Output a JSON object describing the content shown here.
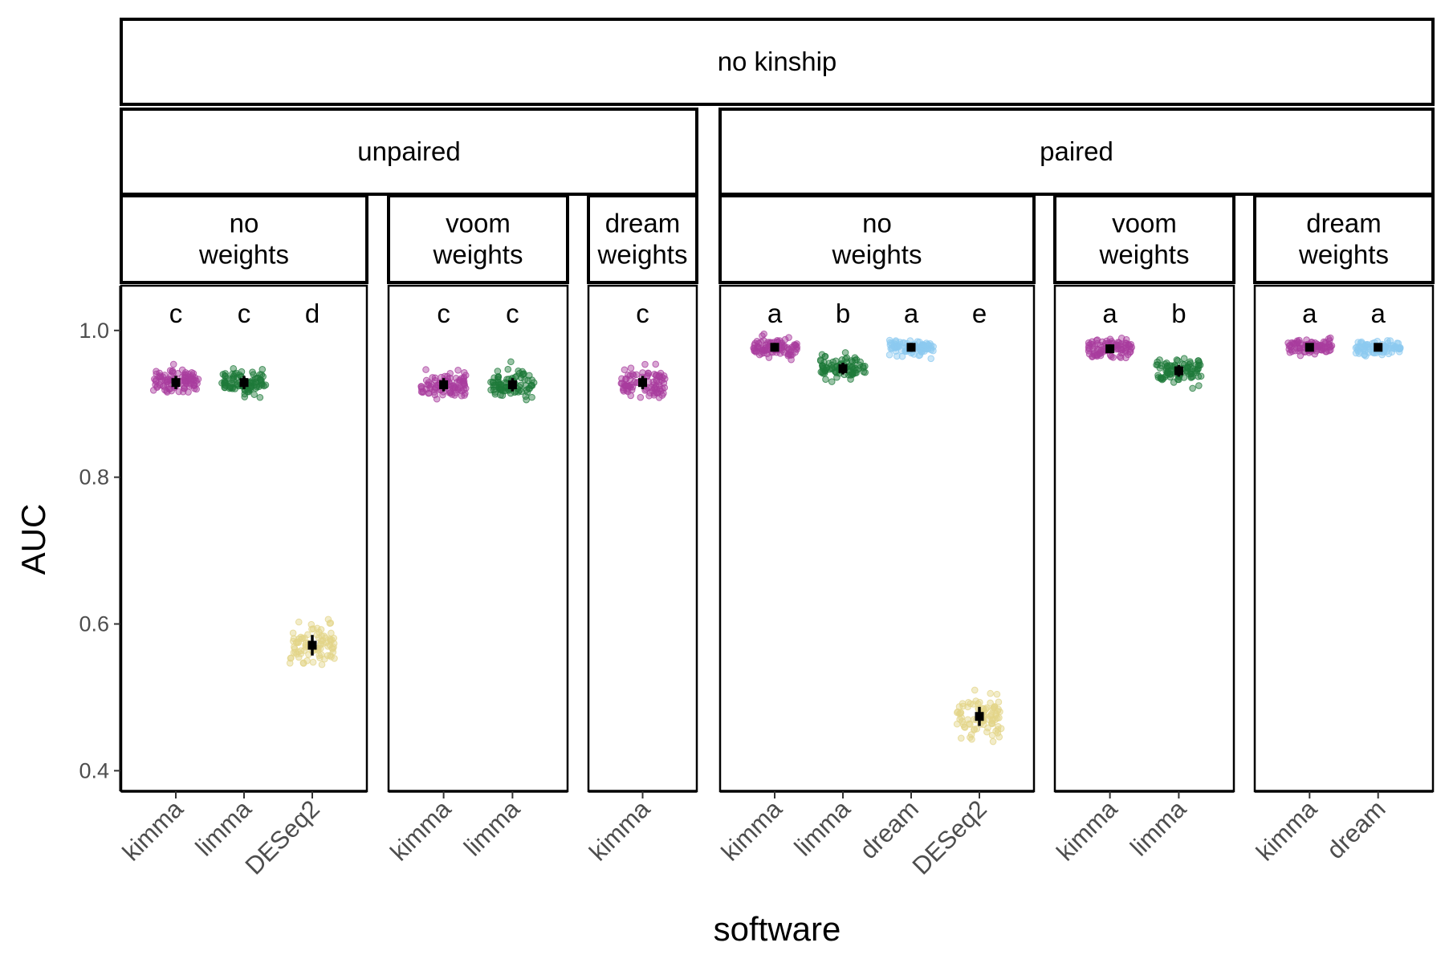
{
  "chart_data": {
    "type": "scatter",
    "xlabel": "software",
    "ylabel": "AUC",
    "ylim": [
      0.372,
      1.061
    ],
    "yticks": [
      0.4,
      0.6,
      0.8,
      1.0
    ],
    "ytick_labels": [
      "0.4",
      "0.6",
      "0.8",
      "1.0"
    ],
    "grid": false,
    "legend": "none",
    "colors": {
      "kimma": "#a83c9e",
      "limma": "#1e7a3a",
      "dream": "#8ccaf0",
      "DESeq2": "#e3d488",
      "summary": "#000000"
    },
    "facet_top": "no kinship",
    "groups": [
      {
        "label": "unpaired",
        "panels": [
          {
            "label": "no\nweights",
            "points": [
              {
                "software": "kimma",
                "mean": 0.929,
                "sd": 0.009,
                "letter": "c"
              },
              {
                "software": "limma",
                "mean": 0.929,
                "sd": 0.009,
                "letter": "c"
              },
              {
                "software": "DESeq2",
                "mean": 0.571,
                "sd": 0.014,
                "letter": "d"
              }
            ]
          },
          {
            "label": "voom\nweights",
            "points": [
              {
                "software": "kimma",
                "mean": 0.926,
                "sd": 0.009,
                "letter": "c"
              },
              {
                "software": "limma",
                "mean": 0.926,
                "sd": 0.009,
                "letter": "c"
              }
            ]
          },
          {
            "label": "dream\nweights",
            "points": [
              {
                "software": "kimma",
                "mean": 0.929,
                "sd": 0.009,
                "letter": "c"
              }
            ]
          }
        ]
      },
      {
        "label": "paired",
        "panels": [
          {
            "label": "no\nweights",
            "points": [
              {
                "software": "kimma",
                "mean": 0.977,
                "sd": 0.006,
                "letter": "a"
              },
              {
                "software": "limma",
                "mean": 0.948,
                "sd": 0.008,
                "letter": "b"
              },
              {
                "software": "dream",
                "mean": 0.977,
                "sd": 0.006,
                "letter": "a"
              },
              {
                "software": "DESeq2",
                "mean": 0.474,
                "sd": 0.013,
                "letter": "e"
              }
            ]
          },
          {
            "label": "voom\nweights",
            "points": [
              {
                "software": "kimma",
                "mean": 0.975,
                "sd": 0.006,
                "letter": "a"
              },
              {
                "software": "limma",
                "mean": 0.945,
                "sd": 0.008,
                "letter": "b"
              }
            ]
          },
          {
            "label": "dream\nweights",
            "points": [
              {
                "software": "kimma",
                "mean": 0.977,
                "sd": 0.005,
                "letter": "a"
              },
              {
                "software": "dream",
                "mean": 0.977,
                "sd": 0.005,
                "letter": "a"
              }
            ]
          }
        ]
      }
    ]
  }
}
